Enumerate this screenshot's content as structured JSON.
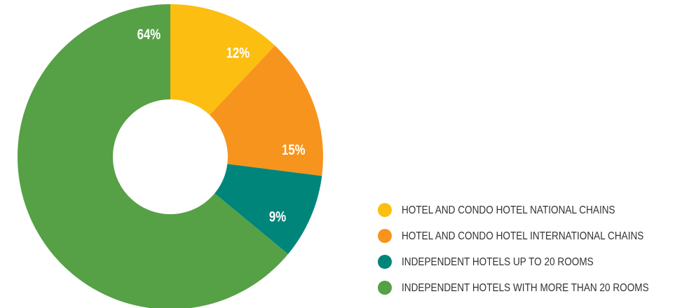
{
  "chart_data": {
    "type": "donut",
    "categories": [
      "HOTEL AND CONDO HOTEL NATIONAL CHAINS",
      "HOTEL AND CONDO HOTEL INTERNATIONAL CHAINS",
      "INDEPENDENT HOTELS UP TO 20 ROOMS",
      "INDEPENDENT HOTELS WITH MORE THAN 20 ROOMS"
    ],
    "values": [
      12,
      15,
      9,
      64
    ],
    "value_labels": [
      "12%",
      "15%",
      "9%",
      "64%"
    ],
    "colors": [
      "#fdbe12",
      "#f7941d",
      "#00857a",
      "#56a046"
    ],
    "legend": "bottom-right"
  }
}
